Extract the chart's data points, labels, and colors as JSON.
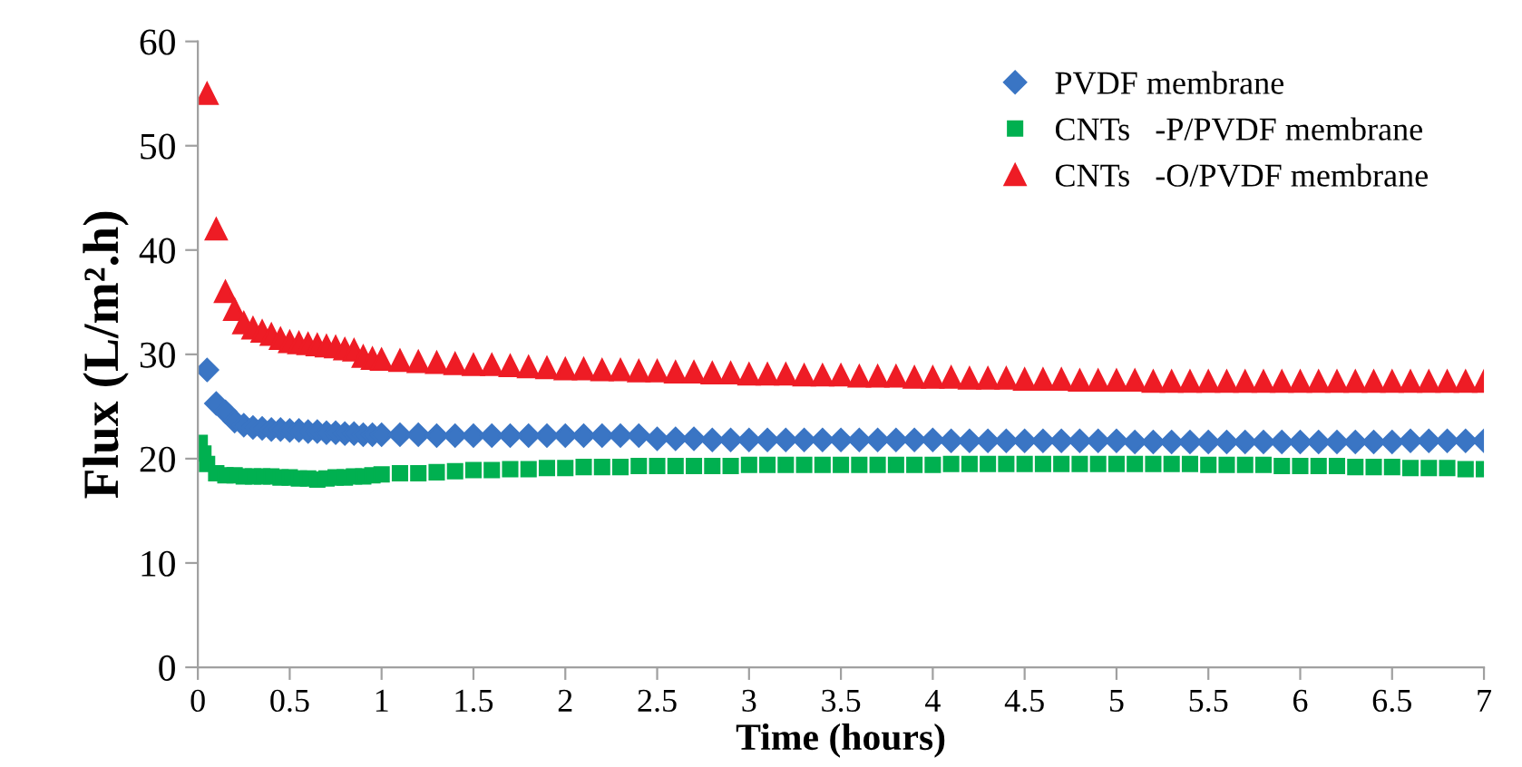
{
  "chart_data": {
    "type": "scatter",
    "xlabel": "Time (hours)",
    "ylabel": "Flux (L/m².h)",
    "x": [
      0.05,
      0.1,
      0.15,
      0.2,
      0.25,
      0.3,
      0.35,
      0.4,
      0.45,
      0.5,
      0.55,
      0.6,
      0.65,
      0.7,
      0.75,
      0.8,
      0.85,
      0.9,
      0.95,
      1.0,
      1.1,
      1.2,
      1.3,
      1.4,
      1.5,
      1.6,
      1.7,
      1.8,
      1.9,
      2.0,
      2.1,
      2.2,
      2.3,
      2.4,
      2.5,
      2.6,
      2.7,
      2.8,
      2.9,
      3.0,
      3.1,
      3.2,
      3.3,
      3.4,
      3.5,
      3.6,
      3.7,
      3.8,
      3.9,
      4.0,
      4.1,
      4.2,
      4.3,
      4.4,
      4.5,
      4.6,
      4.7,
      4.8,
      4.9,
      5.0,
      5.1,
      5.2,
      5.3,
      5.4,
      5.5,
      5.6,
      5.7,
      5.8,
      5.9,
      6.0,
      6.1,
      6.2,
      6.3,
      6.4,
      6.5,
      6.6,
      6.7,
      6.8,
      6.9,
      7.0
    ],
    "series": [
      {
        "name": "PVDF membrane",
        "color": "#3a75c4",
        "marker": "diamond",
        "values": [
          28.5,
          25.3,
          24.5,
          23.6,
          23.2,
          23,
          22.9,
          22.8,
          22.8,
          22.7,
          22.7,
          22.6,
          22.6,
          22.5,
          22.5,
          22.4,
          22.4,
          22.3,
          22.3,
          22.3,
          22.3,
          22.3,
          22.2,
          22.2,
          22.2,
          22.2,
          22.2,
          22.2,
          22.2,
          22.2,
          22.2,
          22.2,
          22.2,
          22.2,
          21.9,
          21.9,
          21.9,
          21.8,
          21.8,
          21.8,
          21.8,
          21.8,
          21.8,
          21.8,
          21.8,
          21.8,
          21.8,
          21.8,
          21.8,
          21.8,
          21.7,
          21.7,
          21.7,
          21.7,
          21.7,
          21.7,
          21.7,
          21.7,
          21.7,
          21.7,
          21.6,
          21.6,
          21.6,
          21.6,
          21.6,
          21.6,
          21.6,
          21.6,
          21.6,
          21.6,
          21.6,
          21.6,
          21.6,
          21.6,
          21.6,
          21.7,
          21.7,
          21.7,
          21.7,
          21.7
        ]
      },
      {
        "name": "CNTs   -P/PVDF membrane",
        "color": "#00b050",
        "marker": "square",
        "x": [
          0.01,
          0.03,
          0.05,
          0.1,
          0.15,
          0.2,
          0.25,
          0.3,
          0.35,
          0.4,
          0.45,
          0.5,
          0.55,
          0.6,
          0.65,
          0.7,
          0.75,
          0.8,
          0.85,
          0.9,
          0.95,
          1.0,
          1.1,
          1.2,
          1.3,
          1.4,
          1.5,
          1.6,
          1.7,
          1.8,
          1.9,
          2.0,
          2.1,
          2.2,
          2.3,
          2.4,
          2.5,
          2.6,
          2.7,
          2.8,
          2.9,
          3.0,
          3.1,
          3.2,
          3.3,
          3.4,
          3.5,
          3.6,
          3.7,
          3.8,
          3.9,
          4.0,
          4.1,
          4.2,
          4.3,
          4.4,
          4.5,
          4.6,
          4.7,
          4.8,
          4.9,
          5.0,
          5.1,
          5.2,
          5.3,
          5.4,
          5.5,
          5.6,
          5.7,
          5.8,
          5.9,
          6.0,
          6.1,
          6.2,
          6.3,
          6.4,
          6.5,
          6.6,
          6.7,
          6.8,
          6.9,
          7.0
        ],
        "values": [
          21.5,
          20.5,
          19.5,
          18.6,
          18.4,
          18.4,
          18.3,
          18.3,
          18.3,
          18.3,
          18.2,
          18.2,
          18.1,
          18.1,
          18.0,
          18.1,
          18.2,
          18.2,
          18.3,
          18.3,
          18.4,
          18.5,
          18.6,
          18.6,
          18.7,
          18.8,
          18.9,
          18.9,
          19.0,
          19.0,
          19.1,
          19.1,
          19.2,
          19.2,
          19.2,
          19.3,
          19.3,
          19.3,
          19.3,
          19.3,
          19.3,
          19.4,
          19.4,
          19.4,
          19.4,
          19.4,
          19.4,
          19.4,
          19.4,
          19.4,
          19.4,
          19.4,
          19.5,
          19.5,
          19.5,
          19.5,
          19.5,
          19.5,
          19.5,
          19.5,
          19.5,
          19.5,
          19.5,
          19.5,
          19.5,
          19.5,
          19.4,
          19.4,
          19.4,
          19.4,
          19.3,
          19.3,
          19.3,
          19.3,
          19.2,
          19.2,
          19.2,
          19.1,
          19.1,
          19.1,
          19.0,
          19.0
        ]
      },
      {
        "name": "CNTs   -O/PVDF membrane",
        "color": "#ee1c25",
        "marker": "triangle",
        "values": [
          55,
          42,
          36,
          34.3,
          33,
          32.5,
          32.2,
          31.9,
          31.5,
          31.2,
          31.1,
          31,
          30.9,
          30.8,
          30.7,
          30.5,
          30.4,
          29.8,
          29.6,
          29.5,
          29.4,
          29.3,
          29.2,
          29.1,
          29.0,
          29.0,
          28.9,
          28.8,
          28.7,
          28.6,
          28.6,
          28.5,
          28.5,
          28.4,
          28.4,
          28.3,
          28.3,
          28.2,
          28.2,
          28.1,
          28.1,
          28.1,
          28.0,
          28.0,
          28.0,
          27.9,
          27.9,
          27.9,
          27.8,
          27.8,
          27.8,
          27.7,
          27.7,
          27.7,
          27.6,
          27.6,
          27.6,
          27.5,
          27.5,
          27.5,
          27.5,
          27.4,
          27.4,
          27.4,
          27.4,
          27.4,
          27.4,
          27.4,
          27.4,
          27.4,
          27.4,
          27.4,
          27.4,
          27.4,
          27.4,
          27.4,
          27.4,
          27.4,
          27.4,
          27.4
        ]
      }
    ],
    "xlim": [
      0,
      7
    ],
    "xticks": [
      0,
      0.5,
      1,
      1.5,
      2,
      2.5,
      3,
      3.5,
      4,
      4.5,
      5,
      5.5,
      6,
      6.5,
      7
    ],
    "ylim": [
      0,
      60
    ],
    "yticks": [
      0,
      10,
      20,
      30,
      40,
      50,
      60
    ],
    "grid": false,
    "legend": "top right"
  }
}
